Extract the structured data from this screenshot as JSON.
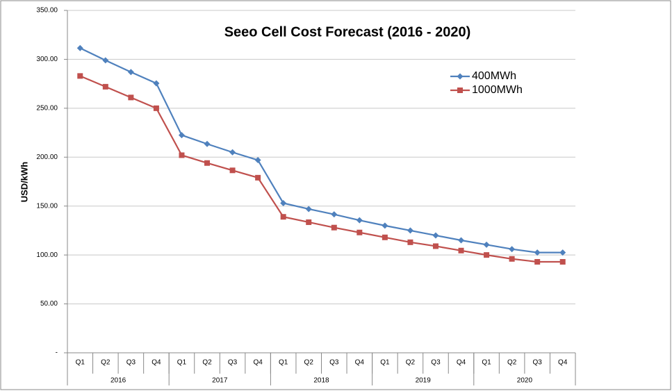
{
  "chart_data": {
    "type": "line",
    "title": "Seeo Cell Cost Forecast (2016 - 2020)",
    "y_label": "USD/kWh",
    "categories": [
      "Q1",
      "Q2",
      "Q3",
      "Q4",
      "Q1",
      "Q2",
      "Q3",
      "Q4",
      "Q1",
      "Q2",
      "Q3",
      "Q4",
      "Q1",
      "Q2",
      "Q3",
      "Q4",
      "Q1",
      "Q2",
      "Q3",
      "Q4"
    ],
    "category_groups": [
      "2016",
      "2017",
      "2018",
      "2019",
      "2020"
    ],
    "series": [
      {
        "name": "400MWh",
        "color": "#4f81bd",
        "values": [
          311.5,
          299,
          287,
          275.5,
          222.5,
          213.5,
          205,
          197,
          153,
          147,
          141.5,
          135.5,
          130,
          125,
          120,
          115,
          110.5,
          106,
          102.5,
          102.5
        ]
      },
      {
        "name": "1000MWh",
        "color": "#c0504d",
        "values": [
          283,
          272,
          261,
          250,
          202,
          194,
          186.5,
          179,
          139,
          133.5,
          128,
          123,
          118,
          113,
          109,
          104.5,
          100,
          96,
          93,
          93
        ]
      }
    ],
    "ylim": [
      0,
      350
    ],
    "yticks": [
      {
        "value": 0,
        "label": "-"
      },
      {
        "value": 50,
        "label": "50.00"
      },
      {
        "value": 100,
        "label": "100.00"
      },
      {
        "value": 150,
        "label": "150.00"
      },
      {
        "value": 200,
        "label": "200.00"
      },
      {
        "value": 250,
        "label": "250.00"
      },
      {
        "value": 300,
        "label": "300.00"
      },
      {
        "value": 350,
        "label": "350.00"
      }
    ],
    "grid": true,
    "legend": "upper-right"
  }
}
